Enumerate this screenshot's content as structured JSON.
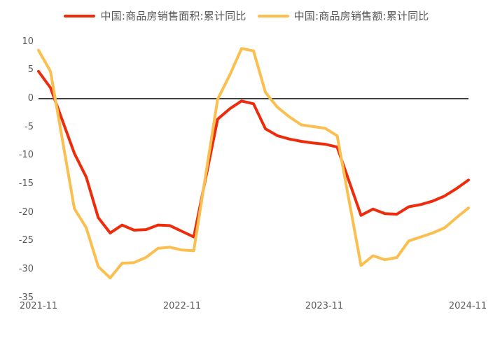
{
  "chart_data": {
    "type": "line",
    "title": "",
    "xlabel": "",
    "ylabel": "",
    "ylim": [
      -35,
      10
    ],
    "grid": false,
    "zero_axis_line": true,
    "legend_position": "top-center",
    "colors": {
      "axis_line": "#3f3f3f",
      "tick_label": "#595959",
      "legend_text": "#595959",
      "background": "#ffffff"
    },
    "ytick_labels": [
      "10",
      "5",
      "0",
      "-5",
      "-10",
      "-15",
      "-20",
      "-25",
      "-30",
      "-35"
    ],
    "xtick_labels": [
      "2021-11",
      "2022-11",
      "2023-11",
      "2024-11"
    ],
    "x": [
      "2021-11",
      "2021-12",
      "2022-02",
      "2022-03",
      "2022-04",
      "2022-05",
      "2022-06",
      "2022-07",
      "2022-08",
      "2022-09",
      "2022-10",
      "2022-11",
      "2022-12",
      "2023-02",
      "2023-03",
      "2023-04",
      "2023-05",
      "2023-06",
      "2023-07",
      "2023-08",
      "2023-09",
      "2023-10",
      "2023-11",
      "2023-12",
      "2024-02",
      "2024-03",
      "2024-04",
      "2024-05",
      "2024-06",
      "2024-07",
      "2024-08",
      "2024-09",
      "2024-10",
      "2024-11"
    ],
    "series": [
      {
        "name": "中国:商品房销售面积:累计同比",
        "color": "#ee2c0c",
        "values": [
          4.8,
          1.9,
          -9.6,
          -13.8,
          -20.9,
          -23.6,
          -22.2,
          -23.1,
          -23.0,
          -22.2,
          -22.3,
          -23.3,
          -24.3,
          -3.6,
          -1.8,
          -0.4,
          -0.9,
          -5.3,
          -6.5,
          -7.1,
          -7.5,
          -7.8,
          -8.0,
          -8.5,
          -20.5,
          -19.4,
          -20.2,
          -20.3,
          -19.0,
          -18.6,
          -18.0,
          -17.1,
          -15.8,
          -14.3
        ]
      },
      {
        "name": "中国:商品房销售额:累计同比",
        "color": "#fbbf50",
        "values": [
          8.5,
          4.8,
          -19.3,
          -22.7,
          -29.5,
          -31.5,
          -28.9,
          -28.8,
          -27.9,
          -26.3,
          -26.1,
          -26.6,
          -26.7,
          -0.1,
          4.1,
          8.8,
          8.4,
          1.1,
          -1.5,
          -3.2,
          -4.6,
          -4.9,
          -5.2,
          -6.5,
          -29.3,
          -27.6,
          -28.3,
          -27.9,
          -25.0,
          -24.3,
          -23.6,
          -22.7,
          -20.9,
          -19.2
        ]
      }
    ]
  }
}
